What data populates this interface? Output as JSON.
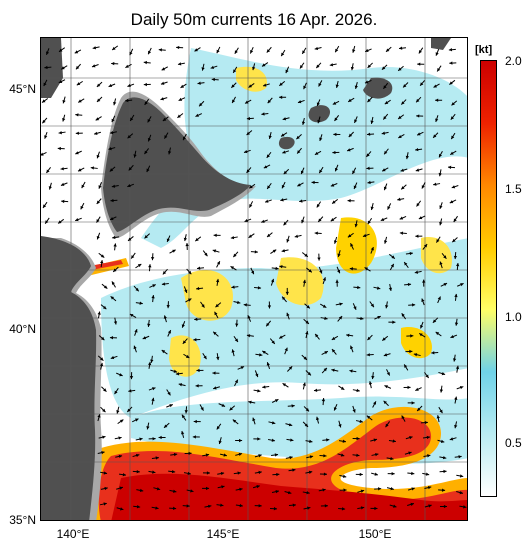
{
  "title": "Daily 50m currents 16 Apr. 2026.",
  "colorbar": {
    "unit": "[kt]",
    "ticks": [
      "2.0",
      "1.5",
      "1.0",
      "0.5"
    ],
    "colors": [
      "#ffffff",
      "#b9ecf2",
      "#6fd2e8",
      "#ffff66",
      "#ffcc00",
      "#ff8800",
      "#ee2200",
      "#cc0000"
    ]
  },
  "axes": {
    "lat_labels": [
      "45°N",
      "40°N",
      "35°N"
    ],
    "lon_labels": [
      "140°E",
      "145°E",
      "150°E"
    ]
  },
  "colors": {
    "land": "#505050",
    "shallow": "#a8a8a8",
    "kuroshio": "#e8301c",
    "strong": "#ffe000",
    "weak": "#9ee6ee"
  }
}
